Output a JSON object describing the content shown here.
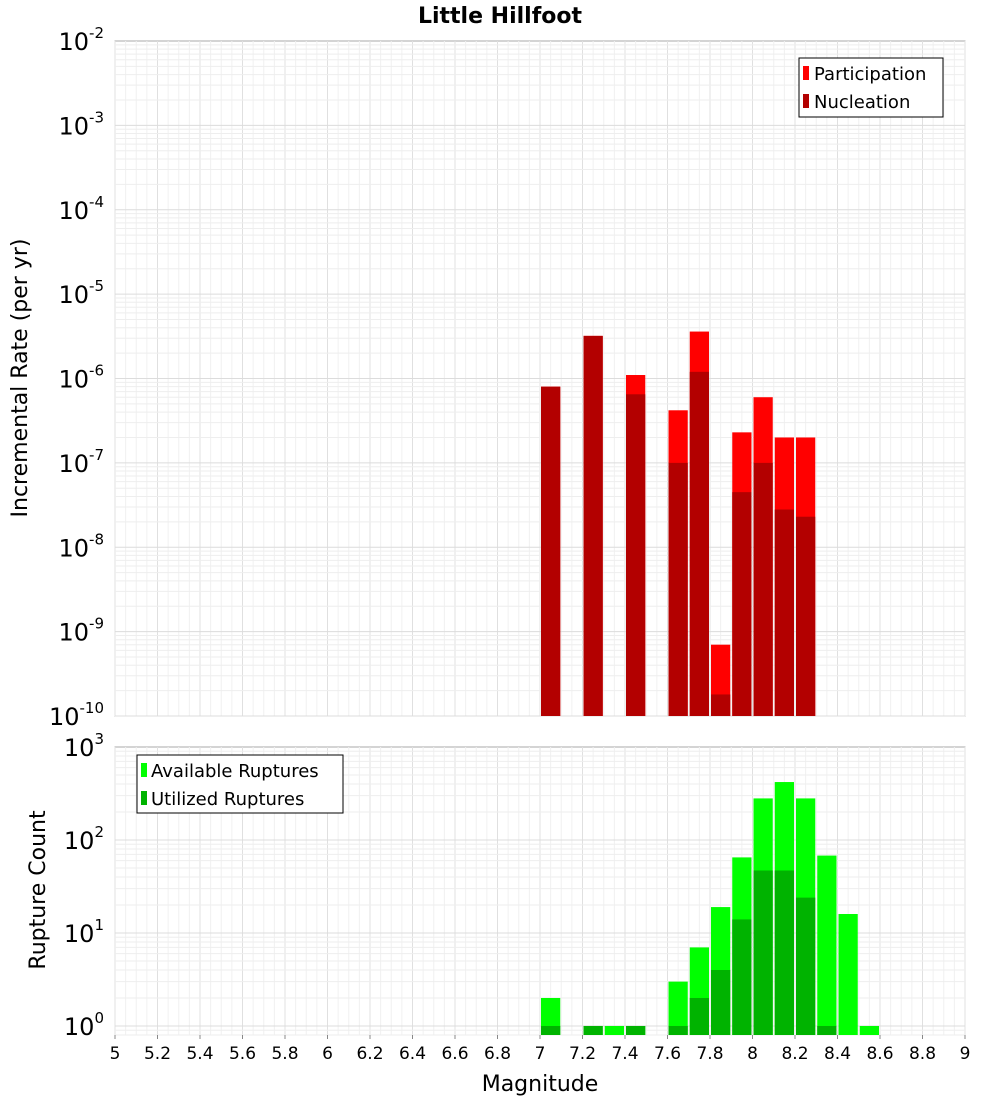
{
  "chart_data": [
    {
      "type": "bar",
      "title": "Little Hillfoot",
      "xlabel": "Magnitude",
      "ylabel": "Incremental Rate (per yr)",
      "yscale": "log",
      "ylim": [
        1e-10,
        0.01
      ],
      "xlim": [
        5,
        9
      ],
      "grid": true,
      "legend_position": "top-right",
      "bin_width": 0.1,
      "x": [
        7.05,
        7.25,
        7.45,
        7.65,
        7.75,
        7.85,
        7.95,
        8.05,
        8.15,
        8.25
      ],
      "series": [
        {
          "name": "Participation",
          "color": "#ff0000",
          "values": [
            8e-07,
            3.2e-06,
            1.1e-06,
            4.2e-07,
            3.6e-06,
            7e-10,
            2.3e-07,
            6e-07,
            2e-07,
            2e-07
          ]
        },
        {
          "name": "Nucleation",
          "color": "#b30000",
          "values": [
            8e-07,
            3.2e-06,
            6.5e-07,
            1e-07,
            1.2e-06,
            1.8e-10,
            4.5e-08,
            1e-07,
            2.8e-08,
            2.3e-08
          ]
        }
      ]
    },
    {
      "type": "bar",
      "xlabel": "Magnitude",
      "ylabel": "Rupture Count",
      "yscale": "log",
      "ylim": [
        0.8,
        1000
      ],
      "xlim": [
        5,
        9
      ],
      "grid": true,
      "legend_position": "top-left",
      "bin_width": 0.1,
      "x": [
        7.05,
        7.25,
        7.35,
        7.45,
        7.65,
        7.75,
        7.85,
        7.95,
        8.05,
        8.15,
        8.25,
        8.35,
        8.45,
        8.55
      ],
      "series": [
        {
          "name": "Available Ruptures",
          "color": "#00ff00",
          "values": [
            2,
            1,
            1,
            1,
            3,
            7,
            19,
            65,
            280,
            420,
            280,
            68,
            16,
            1
          ]
        },
        {
          "name": "Utilized Ruptures",
          "color": "#00b300",
          "values": [
            1,
            1,
            0,
            1,
            1,
            2,
            4,
            14,
            47,
            47,
            24,
            1,
            0,
            0
          ]
        }
      ]
    }
  ],
  "x_ticks": [
    "5",
    "5.2",
    "5.4",
    "5.6",
    "5.8",
    "6",
    "6.2",
    "6.4",
    "6.6",
    "6.8",
    "7",
    "7.2",
    "7.4",
    "7.6",
    "7.8",
    "8",
    "8.2",
    "8.4",
    "8.6",
    "8.8",
    "9"
  ],
  "top_y_ticks": [
    {
      "base": "10",
      "exp": "-10"
    },
    {
      "base": "10",
      "exp": "-9"
    },
    {
      "base": "10",
      "exp": "-8"
    },
    {
      "base": "10",
      "exp": "-7"
    },
    {
      "base": "10",
      "exp": "-6"
    },
    {
      "base": "10",
      "exp": "-5"
    },
    {
      "base": "10",
      "exp": "-4"
    },
    {
      "base": "10",
      "exp": "-3"
    },
    {
      "base": "10",
      "exp": "-2"
    }
  ],
  "bottom_y_ticks": [
    {
      "base": "10",
      "exp": "0"
    },
    {
      "base": "10",
      "exp": "1"
    },
    {
      "base": "10",
      "exp": "2"
    },
    {
      "base": "10",
      "exp": "3"
    }
  ]
}
